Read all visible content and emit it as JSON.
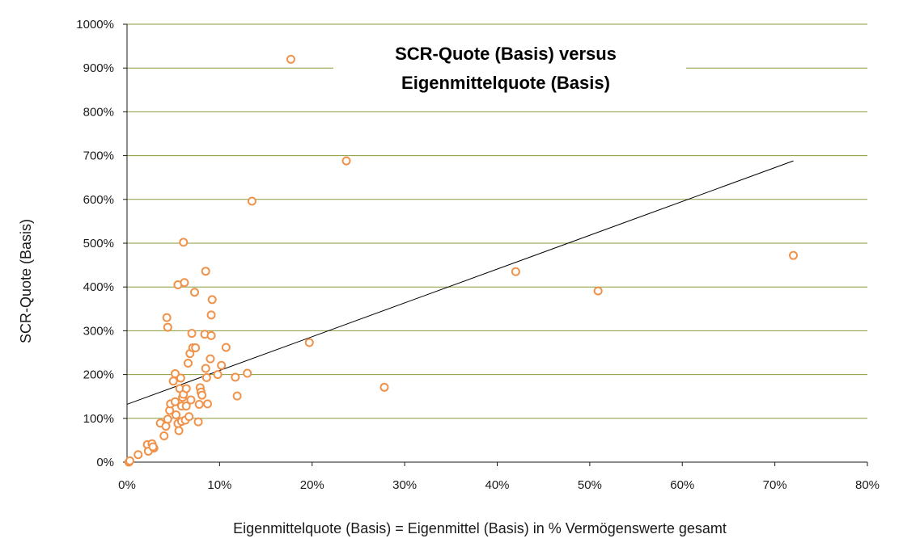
{
  "chart_data": {
    "type": "scatter",
    "title_lines": [
      "SCR-Quote (Basis) versus",
      "Eigenmittelquote (Basis)"
    ],
    "xlabel": "Eigenmittelquote (Basis) = Eigenmittel (Basis) in % Vermögenswerte gesamt",
    "ylabel": "SCR-Quote (Basis)",
    "xlim": [
      0,
      80
    ],
    "ylim": [
      0,
      1000
    ],
    "x_ticks": [
      "0%",
      "10%",
      "20%",
      "30%",
      "40%",
      "50%",
      "60%",
      "70%",
      "80%"
    ],
    "y_ticks": [
      "0%",
      "100%",
      "200%",
      "300%",
      "400%",
      "500%",
      "600%",
      "700%",
      "800%",
      "900%",
      "1000%"
    ],
    "grid": "horizontal",
    "marker_color": "#f0924a",
    "gridline_color": "#8a9a3c",
    "trendline": {
      "x": [
        0,
        72
      ],
      "y": [
        132,
        688
      ]
    },
    "points": [
      [
        0.2,
        0
      ],
      [
        0.3,
        3
      ],
      [
        1.2,
        17
      ],
      [
        2.2,
        40
      ],
      [
        2.3,
        25
      ],
      [
        2.7,
        42
      ],
      [
        2.9,
        32
      ],
      [
        2.8,
        35
      ],
      [
        3.6,
        89
      ],
      [
        4.0,
        60
      ],
      [
        4.2,
        82
      ],
      [
        4.3,
        330
      ],
      [
        4.4,
        308
      ],
      [
        4.4,
        98
      ],
      [
        4.6,
        118
      ],
      [
        4.7,
        133
      ],
      [
        5.0,
        185
      ],
      [
        5.2,
        202
      ],
      [
        5.2,
        138
      ],
      [
        5.3,
        108
      ],
      [
        5.5,
        88
      ],
      [
        5.5,
        405
      ],
      [
        5.6,
        72
      ],
      [
        5.7,
        168
      ],
      [
        5.8,
        192
      ],
      [
        5.9,
        93
      ],
      [
        5.9,
        128
      ],
      [
        6.0,
        148
      ],
      [
        6.1,
        502
      ],
      [
        6.1,
        155
      ],
      [
        6.2,
        410
      ],
      [
        6.3,
        96
      ],
      [
        6.4,
        168
      ],
      [
        6.4,
        128
      ],
      [
        6.6,
        226
      ],
      [
        6.7,
        104
      ],
      [
        6.8,
        248
      ],
      [
        6.9,
        142
      ],
      [
        7.0,
        294
      ],
      [
        7.1,
        261
      ],
      [
        7.3,
        388
      ],
      [
        7.4,
        261
      ],
      [
        7.7,
        92
      ],
      [
        7.8,
        132
      ],
      [
        7.9,
        170
      ],
      [
        8.0,
        160
      ],
      [
        8.1,
        153
      ],
      [
        8.4,
        292
      ],
      [
        8.5,
        436
      ],
      [
        8.5,
        214
      ],
      [
        8.6,
        193
      ],
      [
        8.7,
        133
      ],
      [
        9.0,
        236
      ],
      [
        9.1,
        336
      ],
      [
        9.1,
        289
      ],
      [
        9.2,
        371
      ],
      [
        9.8,
        200
      ],
      [
        10.2,
        221
      ],
      [
        10.7,
        262
      ],
      [
        11.7,
        194
      ],
      [
        11.9,
        151
      ],
      [
        13.0,
        203
      ],
      [
        13.5,
        596
      ],
      [
        17.7,
        920
      ],
      [
        19.7,
        273
      ],
      [
        23.7,
        688
      ],
      [
        27.8,
        171
      ],
      [
        42.0,
        435
      ],
      [
        50.9,
        391
      ],
      [
        72.0,
        472
      ]
    ]
  }
}
